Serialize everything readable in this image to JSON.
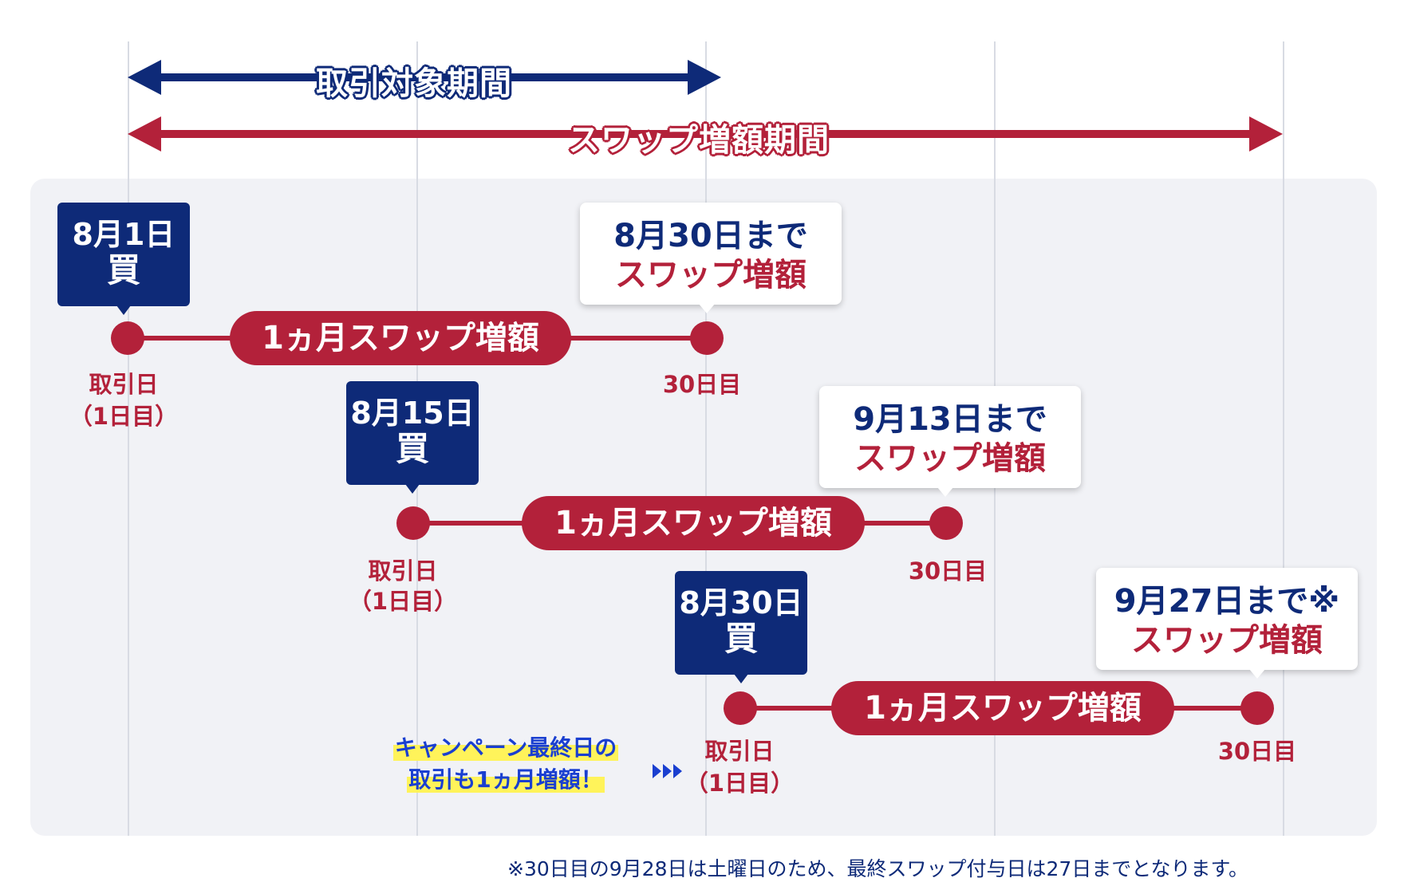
{
  "periods": {
    "trade": "取引対象期間",
    "swap": "スワップ増額期間"
  },
  "rows": [
    {
      "buy_date": "8月1日",
      "buy_action": "買",
      "pill": "1ヵ月スワップ増額",
      "start_label": "取引日",
      "start_sub": "（1日目）",
      "end_label": "30日目",
      "callout_line1": "8月30日まで",
      "callout_line2": "スワップ増額"
    },
    {
      "buy_date": "8月15日",
      "buy_action": "買",
      "pill": "1ヵ月スワップ増額",
      "start_label": "取引日",
      "start_sub": "（1日目）",
      "end_label": "30日目",
      "callout_line1": "9月13日まで",
      "callout_line2": "スワップ増額"
    },
    {
      "buy_date": "8月30日",
      "buy_action": "買",
      "pill": "1ヵ月スワップ増額",
      "start_label": "取引日",
      "start_sub": "（1日目）",
      "end_label": "30日目",
      "callout_line1": "9月27日まで※",
      "callout_line2": "スワップ増額"
    }
  ],
  "campaign": {
    "line1": "キャンペーン最終日の",
    "line2": "取引も1ヵ月増額！"
  },
  "footnote": "※30日目の9月28日は土曜日のため、最終スワップ付与日は27日までとなります。",
  "colors": {
    "navy": "#0e2a78",
    "crimson": "#b3213a",
    "panel": "#f1f2f6",
    "highlight": "#fff35a",
    "campaign_text": "#1a3fd0"
  }
}
